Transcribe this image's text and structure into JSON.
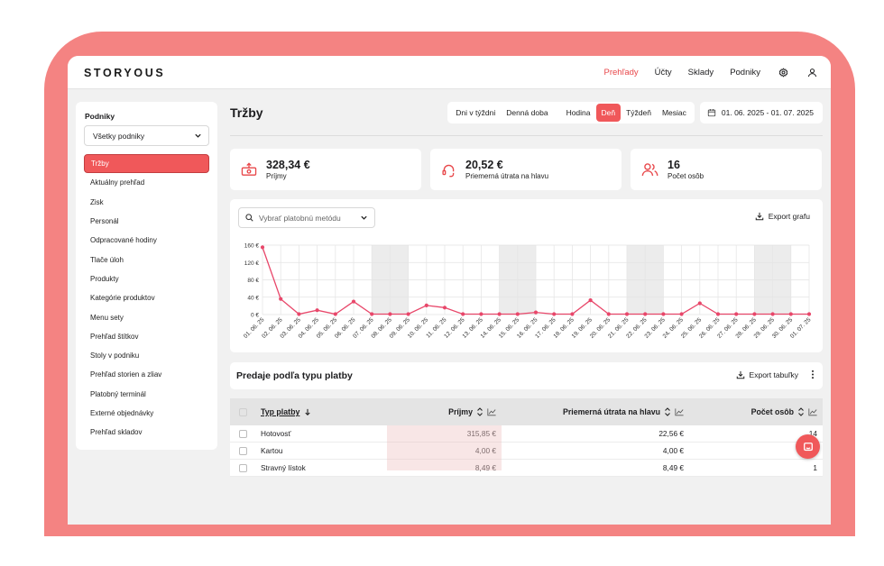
{
  "app": {
    "logo": "STORYOUS"
  },
  "topnav": {
    "items": [
      {
        "label": "Prehľady",
        "active": true
      },
      {
        "label": "Účty",
        "active": false
      },
      {
        "label": "Sklady",
        "active": false
      },
      {
        "label": "Podniky",
        "active": false
      }
    ],
    "icons": [
      "gear-icon",
      "user-icon"
    ]
  },
  "sidebar": {
    "title": "Podniky",
    "select_value": "Všetky podniky",
    "items": [
      {
        "label": "Tržby",
        "active": true
      },
      {
        "label": "Aktuálny prehľad"
      },
      {
        "label": "Zisk"
      },
      {
        "label": "Personál"
      },
      {
        "label": "Odpracované hodiny"
      },
      {
        "label": "Tlače úloh"
      },
      {
        "label": "Produkty"
      },
      {
        "label": "Kategórie produktov"
      },
      {
        "label": "Menu sety"
      },
      {
        "label": "Prehľad štítkov"
      },
      {
        "label": "Stoly v podniku"
      },
      {
        "label": "Prehľad storien a zliav"
      },
      {
        "label": "Platobný terminál"
      },
      {
        "label": "Externé objednávky"
      },
      {
        "label": "Prehľad skladov"
      }
    ]
  },
  "page": {
    "title": "Tržby"
  },
  "filters": {
    "group1": [
      "Dni v týždni",
      "Denná doba"
    ],
    "group2": [
      {
        "label": "Hodina",
        "active": false
      },
      {
        "label": "Deň",
        "active": true
      },
      {
        "label": "Týždeň",
        "active": false
      },
      {
        "label": "Mesiac",
        "active": false
      }
    ],
    "date_range": "01. 06. 2025 - 01. 07. 2025"
  },
  "stats": [
    {
      "value": "328,34 €",
      "label": "Príjmy",
      "icon": "cash-register-icon"
    },
    {
      "value": "20,52 €",
      "label": "Priemerná útrata na hlavu",
      "icon": "headset-icon"
    },
    {
      "value": "16",
      "label": "Počet osôb",
      "icon": "people-icon"
    }
  ],
  "chart_card": {
    "select_placeholder": "Vybrať platobnú metódu",
    "export_label": "Export grafu"
  },
  "colors": {
    "accent": "#f0585a",
    "frame": "#f48382",
    "line": "#e8476a"
  },
  "chart_data": {
    "type": "line",
    "x": [
      "01. 06. 25",
      "02. 06. 25",
      "03. 06. 25",
      "04. 06. 25",
      "05. 06. 25",
      "06. 06. 25",
      "07. 06. 25",
      "08. 06. 25",
      "09. 06. 25",
      "10. 06. 25",
      "11. 06. 25",
      "12. 06. 25",
      "13. 06. 25",
      "14. 06. 25",
      "15. 06. 25",
      "16. 06. 25",
      "17. 06. 25",
      "18. 06. 25",
      "19. 06. 25",
      "20. 06. 25",
      "21. 06. 25",
      "22. 06. 25",
      "23. 06. 25",
      "24. 06. 25",
      "25. 06. 25",
      "26. 06. 25",
      "27. 06. 25",
      "28. 06. 25",
      "29. 06. 25",
      "30. 06. 25",
      "01. 07. 25"
    ],
    "series": [
      {
        "values": [
          155,
          36,
          1,
          10,
          1,
          30,
          1,
          1,
          1,
          21,
          16,
          1,
          1,
          1,
          1,
          5,
          1,
          1,
          33,
          1,
          1,
          1,
          1,
          1,
          26,
          1,
          1,
          1,
          1,
          1,
          1
        ]
      }
    ],
    "y_ticks": [
      "160 €",
      "120 €",
      "80 €",
      "40 €",
      "0 €"
    ],
    "ylim": [
      0,
      160
    ],
    "weekend_shading": true,
    "grid": true
  },
  "table": {
    "title": "Predaje podľa typu platby",
    "export_label": "Export tabuľky",
    "columns": [
      "Typ platby",
      "Príjmy",
      "Priemerná útrata na hlavu",
      "Počet osôb"
    ],
    "rows": [
      {
        "type": "Hotovosť",
        "income": "315,85 €",
        "avg": "22,56 €",
        "count": "14"
      },
      {
        "type": "Kartou",
        "income": "4,00 €",
        "avg": "4,00 €",
        "count": "1"
      },
      {
        "type": "Stravný lístok",
        "income": "8,49 €",
        "avg": "8,49 €",
        "count": "1"
      }
    ]
  }
}
